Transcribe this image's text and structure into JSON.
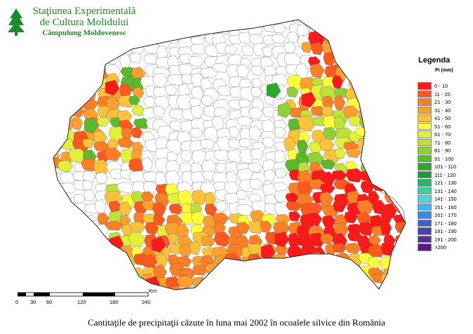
{
  "organization": {
    "line1": "Staţiunea Experimentală",
    "line2": "de Cultura Molidului",
    "line3": "Câmpulung Moldovenesc"
  },
  "legend": {
    "title": "Legenda",
    "unit": "Pi (mm)",
    "classes": [
      {
        "label": "0 - 10",
        "color": "#ff1a1a"
      },
      {
        "label": "11 - 20",
        "color": "#ff5a1e"
      },
      {
        "label": "21 - 30",
        "color": "#ff7f26"
      },
      {
        "label": "31 - 40",
        "color": "#ffa030"
      },
      {
        "label": "41 - 50",
        "color": "#ffc23a"
      },
      {
        "label": "51 - 60",
        "color": "#ffff3c"
      },
      {
        "label": "61 - 70",
        "color": "#e2f03a"
      },
      {
        "label": "71 - 80",
        "color": "#bde03a"
      },
      {
        "label": "81 - 90",
        "color": "#8fd03a"
      },
      {
        "label": "91 - 100",
        "color": "#5cba2a"
      },
      {
        "label": "101 - 110",
        "color": "#2ea82a"
      },
      {
        "label": "111 - 120",
        "color": "#1e9a3e"
      },
      {
        "label": "121 - 130",
        "color": "#2ab46e"
      },
      {
        "label": "131 - 140",
        "color": "#3ccfa0"
      },
      {
        "label": "141 - 150",
        "color": "#46d8d6"
      },
      {
        "label": "151 - 160",
        "color": "#3cb8ee"
      },
      {
        "label": "161 - 170",
        "color": "#3a8ae0"
      },
      {
        "label": "171 - 180",
        "color": "#3a62c8"
      },
      {
        "label": "181 - 190",
        "color": "#4a42b0"
      },
      {
        "label": "191 - 200",
        "color": "#52309a"
      },
      {
        "label": ">200",
        "color": "#5a1a82"
      }
    ]
  },
  "scale": {
    "unit": "Km",
    "ticks": [
      "0",
      "30",
      "60",
      "120",
      "180",
      "240"
    ]
  },
  "caption": "Cantitaţile de precipitaţii căzute în luna mai 2002 în ocoalele silvice din România"
}
